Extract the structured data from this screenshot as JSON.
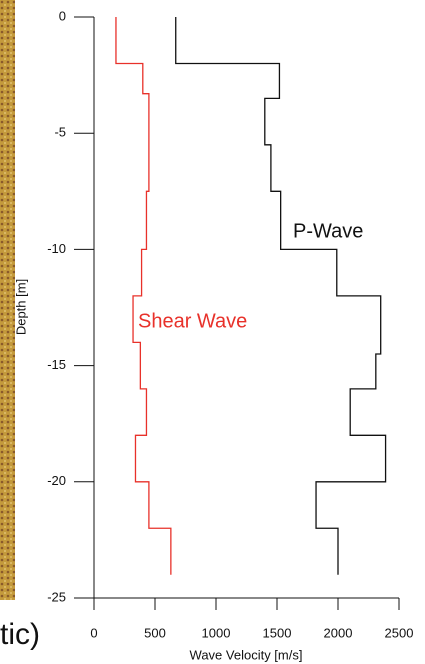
{
  "chart_data": {
    "type": "step-profile",
    "xlabel": "Wave Velocity [m/s]",
    "ylabel": "Depth [m]",
    "xlim": [
      0,
      2500
    ],
    "ylim": [
      -25,
      0
    ],
    "xticks": [
      0,
      500,
      1000,
      1500,
      2000,
      2500
    ],
    "yticks": [
      0,
      -5,
      -10,
      -15,
      -20,
      -25
    ],
    "series": [
      {
        "name": "P-Wave",
        "color": "#111111",
        "x": [
          670,
          670,
          1520,
          1520,
          1400,
          1400,
          1450,
          1450,
          1530,
          1530,
          1990,
          1990,
          2350,
          2350,
          2310,
          2310,
          2100,
          2100,
          2390,
          2390,
          1820,
          1820,
          2000,
          2000
        ],
        "y": [
          0,
          -2,
          -2,
          -3.5,
          -3.5,
          -5.5,
          -5.5,
          -7.5,
          -7.5,
          -10,
          -10,
          -12,
          -12,
          -14.5,
          -14.5,
          -16,
          -16,
          -18,
          -18,
          -20,
          -20,
          -22,
          -22,
          -24
        ]
      },
      {
        "name": "Shear Wave",
        "color": "#e8312a",
        "x": [
          180,
          180,
          400,
          400,
          450,
          450,
          430,
          430,
          390,
          390,
          320,
          320,
          380,
          380,
          430,
          430,
          340,
          340,
          450,
          450,
          630,
          630
        ],
        "y": [
          0,
          -2,
          -2,
          -3.3,
          -3.3,
          -7.5,
          -7.5,
          -10,
          -10,
          -12,
          -12,
          -14,
          -14,
          -16,
          -16,
          -18,
          -18,
          -20,
          -20,
          -22,
          -22,
          -24
        ]
      }
    ],
    "cropped_text": "tic)"
  }
}
